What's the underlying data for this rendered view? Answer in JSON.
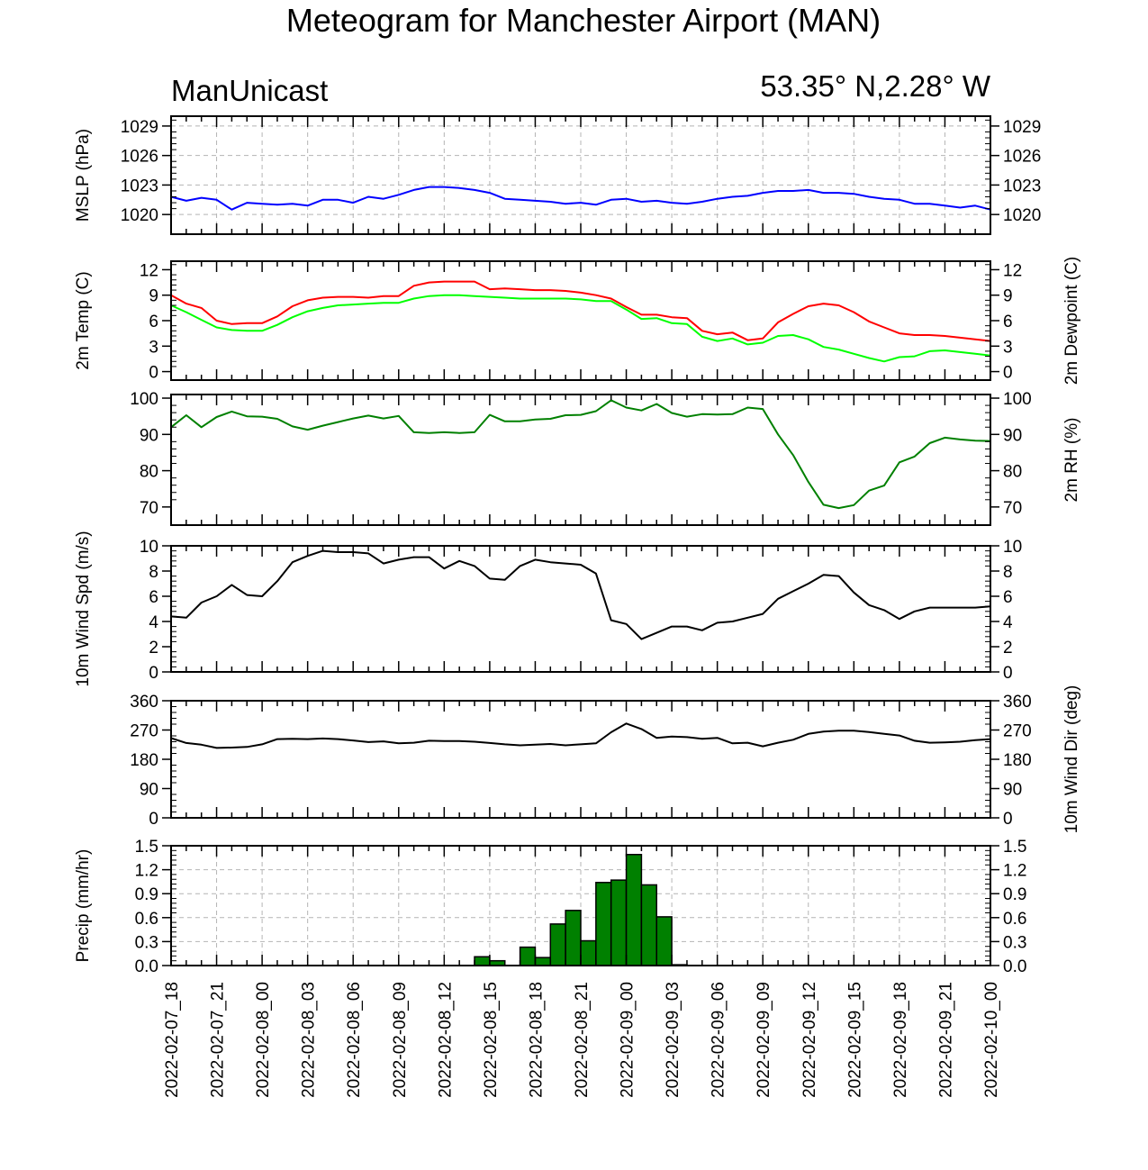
{
  "header": {
    "title": "Meteogram for Manchester Airport (MAN)",
    "left_label": "ManUnicast",
    "right_label": "53.35° N,2.28° W"
  },
  "time_labels": [
    "2022-02-07_18",
    "2022-02-07_21",
    "2022-02-08_00",
    "2022-02-08_03",
    "2022-02-08_06",
    "2022-02-08_09",
    "2022-02-08_12",
    "2022-02-08_15",
    "2022-02-08_18",
    "2022-02-08_21",
    "2022-02-09_00",
    "2022-02-09_03",
    "2022-02-09_06",
    "2022-02-09_09",
    "2022-02-09_12",
    "2022-02-09_15",
    "2022-02-09_18",
    "2022-02-09_21",
    "2022-02-10_00"
  ],
  "x_range_hours": [
    0,
    54
  ],
  "colors": {
    "mslp": "#0000ff",
    "temperature": "#ff0000",
    "dewpoint": "#00ff00",
    "rh": "#008000",
    "wind_speed": "#000000",
    "wind_dir": "#000000",
    "precip_fill": "#008000",
    "grid": "#b4b4b4"
  },
  "chart_data": [
    {
      "type": "line",
      "ylabel": "MSLP (hPa)",
      "ylabel_right": "",
      "ylim": [
        1018,
        1030
      ],
      "yticks": [
        1020,
        1023,
        1026,
        1029
      ],
      "grid": true,
      "series": [
        {
          "color_key": "mslp",
          "x": [
            0,
            1,
            2,
            3,
            4,
            5,
            6,
            7,
            8,
            9,
            10,
            11,
            12,
            13,
            14,
            15,
            16,
            17,
            18,
            19,
            20,
            21,
            22,
            23,
            24,
            25,
            26,
            27,
            28,
            29,
            30,
            31,
            32,
            33,
            34,
            35,
            36,
            37,
            38,
            39,
            40,
            41,
            42,
            43,
            44,
            45,
            46,
            47,
            48,
            49,
            50,
            51,
            52,
            53,
            54
          ],
          "y": [
            1021.8,
            1021.4,
            1021.7,
            1021.5,
            1020.5,
            1021.2,
            1021.1,
            1021.0,
            1021.1,
            1020.9,
            1021.5,
            1021.5,
            1021.2,
            1021.8,
            1021.6,
            1022.0,
            1022.5,
            1022.8,
            1022.8,
            1022.7,
            1022.5,
            1022.2,
            1021.6,
            1021.5,
            1021.4,
            1021.3,
            1021.1,
            1021.2,
            1021.0,
            1021.5,
            1021.6,
            1021.3,
            1021.4,
            1021.2,
            1021.1,
            1021.3,
            1021.6,
            1021.8,
            1021.9,
            1022.2,
            1022.4,
            1022.4,
            1022.5,
            1022.2,
            1022.2,
            1022.1,
            1021.8,
            1021.6,
            1021.5,
            1021.1,
            1021.1,
            1020.9,
            1020.7,
            1020.9,
            1020.5
          ]
        }
      ]
    },
    {
      "type": "line",
      "ylabel": "2m Temp (C)",
      "ylabel_right": "2m Dewpoint (C)",
      "ylim": [
        -1,
        13
      ],
      "yticks": [
        0,
        3,
        6,
        9,
        12
      ],
      "grid": false,
      "series": [
        {
          "color_key": "temperature",
          "x": [
            0,
            1,
            2,
            3,
            4,
            5,
            6,
            7,
            8,
            9,
            10,
            11,
            12,
            13,
            14,
            15,
            16,
            17,
            18,
            19,
            20,
            21,
            22,
            23,
            24,
            25,
            26,
            27,
            28,
            29,
            30,
            31,
            32,
            33,
            34,
            35,
            36,
            37,
            38,
            39,
            40,
            41,
            42,
            43,
            44,
            45,
            46,
            47,
            48,
            49,
            50,
            51,
            52,
            53,
            54
          ],
          "y": [
            9.0,
            8.0,
            7.5,
            6.0,
            5.6,
            5.7,
            5.7,
            6.5,
            7.7,
            8.4,
            8.7,
            8.8,
            8.8,
            8.7,
            8.9,
            8.9,
            10.1,
            10.5,
            10.6,
            10.6,
            10.6,
            9.7,
            9.8,
            9.7,
            9.6,
            9.6,
            9.5,
            9.3,
            9.0,
            8.6,
            7.6,
            6.7,
            6.7,
            6.4,
            6.3,
            4.8,
            4.4,
            4.6,
            3.7,
            3.9,
            5.8,
            6.8,
            7.7,
            8.0,
            7.8,
            7.0,
            5.9,
            5.2,
            4.5,
            4.3,
            4.3,
            4.2,
            4.0,
            3.8,
            3.6
          ]
        },
        {
          "color_key": "dewpoint",
          "x": [
            0,
            1,
            2,
            3,
            4,
            5,
            6,
            7,
            8,
            9,
            10,
            11,
            12,
            13,
            14,
            15,
            16,
            17,
            18,
            19,
            20,
            21,
            22,
            23,
            24,
            25,
            26,
            27,
            28,
            29,
            30,
            31,
            32,
            33,
            34,
            35,
            36,
            37,
            38,
            39,
            40,
            41,
            42,
            43,
            44,
            45,
            46,
            47,
            48,
            49,
            50,
            51,
            52,
            53,
            54
          ],
          "y": [
            7.8,
            7.0,
            6.1,
            5.2,
            4.9,
            4.8,
            4.8,
            5.5,
            6.4,
            7.1,
            7.5,
            7.8,
            7.9,
            8.0,
            8.1,
            8.1,
            8.6,
            8.9,
            9.0,
            9.0,
            8.9,
            8.8,
            8.7,
            8.6,
            8.6,
            8.6,
            8.6,
            8.5,
            8.3,
            8.3,
            7.3,
            6.2,
            6.3,
            5.7,
            5.6,
            4.1,
            3.6,
            3.9,
            3.2,
            3.4,
            4.2,
            4.3,
            3.8,
            2.9,
            2.6,
            2.1,
            1.6,
            1.2,
            1.7,
            1.8,
            2.4,
            2.5,
            2.3,
            2.1,
            1.9
          ]
        }
      ]
    },
    {
      "type": "line",
      "ylabel": "",
      "ylabel_right": "2m RH (%)",
      "ylim": [
        65,
        101
      ],
      "yticks": [
        70,
        80,
        90,
        100
      ],
      "grid": false,
      "series": [
        {
          "color_key": "rh",
          "x": [
            0,
            1,
            2,
            3,
            4,
            5,
            6,
            7,
            8,
            9,
            10,
            11,
            12,
            13,
            14,
            15,
            16,
            17,
            18,
            19,
            20,
            21,
            22,
            23,
            24,
            25,
            26,
            27,
            28,
            29,
            30,
            31,
            32,
            33,
            34,
            35,
            36,
            37,
            38,
            39,
            40,
            41,
            42,
            43,
            44,
            45,
            46,
            47,
            48,
            49,
            50,
            51,
            52,
            53,
            54
          ],
          "y": [
            92.0,
            95.3,
            92.0,
            94.8,
            96.3,
            95.0,
            94.9,
            94.3,
            92.2,
            91.3,
            92.4,
            93.4,
            94.4,
            95.2,
            94.4,
            95.1,
            90.6,
            90.4,
            90.6,
            90.4,
            90.6,
            95.4,
            93.6,
            93.6,
            94.1,
            94.3,
            95.3,
            95.4,
            96.4,
            99.4,
            97.4,
            96.6,
            98.4,
            95.9,
            94.9,
            95.6,
            95.5,
            95.6,
            97.4,
            97.0,
            90.0,
            84.3,
            76.9,
            70.6,
            69.7,
            70.5,
            74.5,
            75.9,
            82.3,
            83.9,
            87.6,
            89.1,
            88.6,
            88.3,
            88.2
          ]
        }
      ]
    },
    {
      "type": "line",
      "ylabel": "10m Wind Spd (m/s)",
      "ylabel_right": "",
      "ylim": [
        0,
        10
      ],
      "yticks": [
        0,
        2,
        4,
        6,
        8,
        10
      ],
      "grid": false,
      "series": [
        {
          "color_key": "wind_speed",
          "x": [
            0,
            1,
            2,
            3,
            4,
            5,
            6,
            7,
            8,
            9,
            10,
            11,
            12,
            13,
            14,
            15,
            16,
            17,
            18,
            19,
            20,
            21,
            22,
            23,
            24,
            25,
            26,
            27,
            28,
            29,
            30,
            31,
            32,
            33,
            34,
            35,
            36,
            37,
            38,
            39,
            40,
            41,
            42,
            43,
            44,
            45,
            46,
            47,
            48,
            49,
            50,
            51,
            52,
            53,
            54
          ],
          "y": [
            4.4,
            4.3,
            5.5,
            6.0,
            6.9,
            6.1,
            6.0,
            7.2,
            8.7,
            9.2,
            9.6,
            9.5,
            9.5,
            9.4,
            8.6,
            8.9,
            9.1,
            9.1,
            8.2,
            8.8,
            8.4,
            7.4,
            7.3,
            8.4,
            8.9,
            8.7,
            8.6,
            8.5,
            7.8,
            4.1,
            3.8,
            2.6,
            3.1,
            3.6,
            3.6,
            3.3,
            3.9,
            4.0,
            4.3,
            4.6,
            5.8,
            6.4,
            7.0,
            7.7,
            7.6,
            6.3,
            5.3,
            4.9,
            4.2,
            4.8,
            5.1,
            5.1,
            5.1,
            5.1,
            5.2
          ]
        }
      ]
    },
    {
      "type": "line",
      "ylabel": "",
      "ylabel_right": "10m Wind Dir (deg)",
      "ylim": [
        0,
        360
      ],
      "yticks": [
        0,
        90,
        180,
        270,
        360
      ],
      "grid": false,
      "series": [
        {
          "color_key": "wind_dir",
          "x": [
            0,
            1,
            2,
            3,
            4,
            5,
            6,
            7,
            8,
            9,
            10,
            11,
            12,
            13,
            14,
            15,
            16,
            17,
            18,
            19,
            20,
            21,
            22,
            23,
            24,
            25,
            26,
            27,
            28,
            29,
            30,
            31,
            32,
            33,
            34,
            35,
            36,
            37,
            38,
            39,
            40,
            41,
            42,
            43,
            44,
            45,
            46,
            47,
            48,
            49,
            50,
            51,
            52,
            53,
            54
          ],
          "y": [
            245,
            230,
            225,
            215,
            216,
            218,
            226,
            242,
            243,
            242,
            244,
            242,
            238,
            233,
            235,
            229,
            231,
            237,
            236,
            236,
            234,
            230,
            226,
            223,
            225,
            227,
            223,
            226,
            229,
            263,
            290,
            273,
            246,
            250,
            248,
            243,
            246,
            229,
            231,
            220,
            231,
            240,
            258,
            265,
            268,
            268,
            264,
            258,
            253,
            237,
            231,
            232,
            234,
            239,
            242
          ]
        }
      ]
    },
    {
      "type": "bar",
      "ylabel": "Precip (mm/hr)",
      "ylabel_right": "",
      "ylim": [
        0,
        1.5
      ],
      "yticks": [
        0.0,
        0.3,
        0.6,
        0.9,
        1.2,
        1.5
      ],
      "ytick_labels": [
        "0.0",
        "0.3",
        "0.6",
        "0.9",
        "1.2",
        "1.5"
      ],
      "grid": true,
      "x": [
        20,
        21,
        22,
        23,
        24,
        25,
        26,
        27,
        28,
        29,
        30,
        31,
        32,
        33
      ],
      "values": [
        0.11,
        0.06,
        0.0,
        0.23,
        0.1,
        0.52,
        0.69,
        0.31,
        1.04,
        1.07,
        1.39,
        1.01,
        0.61,
        0.01
      ]
    }
  ]
}
